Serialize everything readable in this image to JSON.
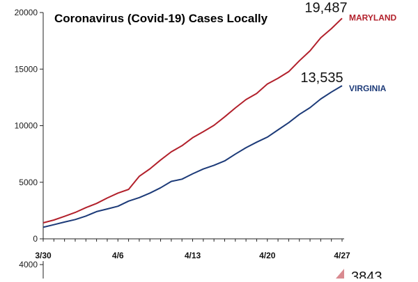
{
  "chart_data": [
    {
      "type": "line",
      "title": "Coronavirus (Covid-19) Cases Locally",
      "xlabel": "",
      "ylabel": "",
      "ylim": [
        0,
        20000
      ],
      "yticks": [
        "0",
        "5000",
        "10000",
        "15000",
        "20000"
      ],
      "xtick_labels": [
        "3/30",
        "4/6",
        "4/13",
        "4/20",
        "4/27"
      ],
      "grid": false,
      "x": [
        "3/30",
        "3/31",
        "4/1",
        "4/2",
        "4/3",
        "4/4",
        "4/5",
        "4/6",
        "4/7",
        "4/8",
        "4/9",
        "4/10",
        "4/11",
        "4/12",
        "4/13",
        "4/14",
        "4/15",
        "4/16",
        "4/17",
        "4/18",
        "4/19",
        "4/20",
        "4/21",
        "4/22",
        "4/23",
        "4/24",
        "4/25",
        "4/26",
        "4/27"
      ],
      "series": [
        {
          "name": "MARYLAND",
          "color": "#b2202b",
          "end_label": "19,487",
          "values": [
            1413,
            1660,
            1985,
            2331,
            2758,
            3125,
            3609,
            4045,
            4371,
            5529,
            6185,
            6968,
            7694,
            8225,
            8936,
            9472,
            10032,
            10784,
            11572,
            12308,
            12847,
            13684,
            14193,
            14775,
            15737,
            16616,
            17766,
            18581,
            19487
          ]
        },
        {
          "name": "VIRGINIA",
          "color": "#1c3a78",
          "end_label": "13,535",
          "values": [
            1020,
            1250,
            1484,
            1706,
            2012,
            2407,
            2637,
            2878,
            3333,
            3645,
            4042,
            4509,
            5077,
            5274,
            5747,
            6171,
            6500,
            6889,
            7491,
            8053,
            8542,
            8990,
            9630,
            10266,
            10998,
            11594,
            12366,
            12970,
            13535
          ]
        }
      ]
    },
    {
      "type": "line",
      "title": "",
      "ylim": [
        0,
        4000
      ],
      "yticks": [
        "4000"
      ],
      "series": [
        {
          "name": "",
          "color": "#d98a90",
          "end_label": "3843",
          "values": [
            3843
          ]
        }
      ]
    }
  ]
}
